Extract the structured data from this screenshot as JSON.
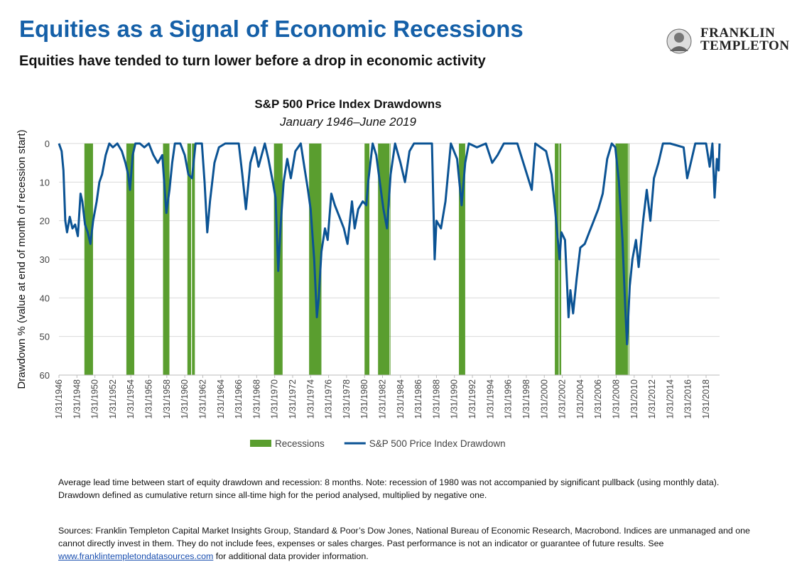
{
  "header": {
    "title": "Equities as a Signal of Economic Recessions",
    "subtitle": "Equities have tended to turn lower before a drop in economic activity"
  },
  "logo": {
    "line1": "FRANKLIN",
    "line2": "TEMPLETON"
  },
  "chart_data": {
    "type": "line",
    "title": "S&P 500 Price Index Drawdowns",
    "subtitle": "January 1946–June 2019",
    "y_label": "Drawdown % (value at end of month of recession start)",
    "ylim": [
      0,
      60
    ],
    "yticks": [
      0,
      10,
      20,
      30,
      40,
      50,
      60
    ],
    "y_inverted": true,
    "grid": true,
    "xlim": [
      1946,
      2019.5
    ],
    "xticks": [
      {
        "value": 1946,
        "label": "1/31/1946"
      },
      {
        "value": 1948,
        "label": "1/31/1948"
      },
      {
        "value": 1950,
        "label": "1/31/1950"
      },
      {
        "value": 1952,
        "label": "1/31/1952"
      },
      {
        "value": 1954,
        "label": "1/31/1954"
      },
      {
        "value": 1956,
        "label": "1/31/1956"
      },
      {
        "value": 1958,
        "label": "1/31/1958"
      },
      {
        "value": 1960,
        "label": "1/31/1960"
      },
      {
        "value": 1962,
        "label": "1/31/1962"
      },
      {
        "value": 1964,
        "label": "1/31/1964"
      },
      {
        "value": 1966,
        "label": "1/31/1966"
      },
      {
        "value": 1968,
        "label": "1/31/1968"
      },
      {
        "value": 1970,
        "label": "1/31/1970"
      },
      {
        "value": 1972,
        "label": "1/31/1972"
      },
      {
        "value": 1974,
        "label": "1/31/1974"
      },
      {
        "value": 1976,
        "label": "1/31/1976"
      },
      {
        "value": 1978,
        "label": "1/31/1978"
      },
      {
        "value": 1980,
        "label": "1/31/1980"
      },
      {
        "value": 1982,
        "label": "1/31/1982"
      },
      {
        "value": 1984,
        "label": "1/31/1984"
      },
      {
        "value": 1986,
        "label": "1/31/1986"
      },
      {
        "value": 1988,
        "label": "1/31/1988"
      },
      {
        "value": 1990,
        "label": "1/31/1990"
      },
      {
        "value": 1992,
        "label": "1/31/1992"
      },
      {
        "value": 1994,
        "label": "1/31/1994"
      },
      {
        "value": 1996,
        "label": "1/31/1996"
      },
      {
        "value": 1998,
        "label": "1/31/1998"
      },
      {
        "value": 2000,
        "label": "1/31/2000"
      },
      {
        "value": 2002,
        "label": "1/31/2002"
      },
      {
        "value": 2004,
        "label": "1/31/2004"
      },
      {
        "value": 2006,
        "label": "1/31/2006"
      },
      {
        "value": 2008,
        "label": "1/31/2008"
      },
      {
        "value": 2010,
        "label": "1/31/2010"
      },
      {
        "value": 2012,
        "label": "1/31/2012"
      },
      {
        "value": 2014,
        "label": "1/31/2014"
      },
      {
        "value": 2016,
        "label": "1/31/2016"
      },
      {
        "value": 2018,
        "label": "1/31/2018"
      }
    ],
    "series": [
      {
        "name": "Recessions",
        "type": "bar",
        "color": "#5a9e2f",
        "spans": [
          [
            1948.83,
            1949.79
          ],
          [
            1953.5,
            1954.38
          ],
          [
            1957.58,
            1958.29
          ],
          [
            1960.29,
            1960.7
          ],
          [
            1960.8,
            1961.12
          ],
          [
            1969.92,
            1970.88
          ],
          [
            1973.83,
            1975.2
          ],
          [
            1980.0,
            1980.54
          ],
          [
            1981.5,
            1982.75
          ],
          [
            1982.8,
            1982.88
          ],
          [
            1990.5,
            1991.2
          ],
          [
            2001.17,
            2001.6
          ],
          [
            2001.68,
            2001.88
          ],
          [
            2007.92,
            2009.3
          ],
          [
            2009.37,
            2009.46
          ]
        ],
        "values": [
          60,
          60,
          60,
          60,
          60,
          60,
          60,
          60,
          60,
          60,
          60,
          60,
          60,
          60,
          60
        ]
      },
      {
        "name": "S&P 500 Price Index Drawdown",
        "type": "line",
        "color": "#0b5394",
        "x": [
          1946.0,
          1946.3,
          1946.5,
          1946.7,
          1946.9,
          1947.2,
          1947.5,
          1947.8,
          1948.1,
          1948.4,
          1948.6,
          1948.9,
          1949.2,
          1949.5,
          1949.8,
          1950.2,
          1950.5,
          1950.8,
          1951.2,
          1951.6,
          1952.0,
          1952.5,
          1953.0,
          1953.4,
          1953.7,
          1953.9,
          1954.2,
          1954.5,
          1955.0,
          1955.5,
          1956.0,
          1956.5,
          1957.0,
          1957.5,
          1957.8,
          1957.95,
          1958.3,
          1958.6,
          1958.9,
          1959.5,
          1960.0,
          1960.4,
          1960.8,
          1961.2,
          1961.9,
          1962.2,
          1962.5,
          1962.8,
          1963.3,
          1963.8,
          1964.5,
          1965.5,
          1966.0,
          1966.4,
          1966.8,
          1967.3,
          1967.8,
          1968.2,
          1968.9,
          1969.3,
          1969.8,
          1970.1,
          1970.4,
          1970.7,
          1971.0,
          1971.4,
          1971.8,
          1972.3,
          1972.9,
          1973.3,
          1973.7,
          1974.0,
          1974.4,
          1974.7,
          1974.9,
          1975.2,
          1975.6,
          1975.9,
          1976.3,
          1976.7,
          1977.2,
          1977.7,
          1978.1,
          1978.6,
          1978.9,
          1979.3,
          1979.8,
          1980.2,
          1980.4,
          1980.9,
          1981.3,
          1981.7,
          1982.1,
          1982.5,
          1982.9,
          1983.4,
          1984.0,
          1984.5,
          1985.0,
          1985.5,
          1986.0,
          1987.5,
          1987.8,
          1988.0,
          1988.5,
          1989.0,
          1989.6,
          1990.3,
          1990.8,
          1991.2,
          1991.6,
          1992.5,
          1993.5,
          1994.2,
          1994.8,
          1995.5,
          1997.0,
          1998.6,
          1999.0,
          2000.2,
          2000.8,
          2001.2,
          2001.7,
          2001.9,
          2002.3,
          2002.7,
          2002.9,
          2003.2,
          2003.6,
          2004.0,
          2004.5,
          2005.0,
          2005.5,
          2006.0,
          2006.5,
          2007.0,
          2007.5,
          2007.9,
          2008.3,
          2008.7,
          2009.0,
          2009.2,
          2009.5,
          2009.8,
          2010.2,
          2010.5,
          2011.0,
          2011.4,
          2011.8,
          2012.2,
          2012.7,
          2013.2,
          2014.0,
          2015.5,
          2015.9,
          2016.3,
          2016.8,
          2017.5,
          2018.0,
          2018.4,
          2018.7,
          2018.95,
          2019.2,
          2019.4,
          2019.5
        ],
        "values": [
          0,
          2,
          7,
          20,
          23,
          19,
          22,
          21,
          24,
          13,
          15,
          21,
          23,
          26,
          20,
          15,
          10,
          8,
          3,
          0,
          1,
          0,
          2,
          5,
          8,
          12,
          3,
          0,
          0,
          1,
          0,
          3,
          5,
          3,
          13,
          18,
          12,
          5,
          0,
          0,
          3,
          8,
          9,
          0,
          0,
          10,
          23,
          15,
          5,
          1,
          0,
          0,
          0,
          8,
          17,
          5,
          1,
          6,
          0,
          4,
          10,
          14,
          33,
          20,
          10,
          4,
          9,
          2,
          0,
          6,
          12,
          17,
          30,
          45,
          40,
          28,
          22,
          25,
          13,
          16,
          19,
          22,
          26,
          15,
          22,
          17,
          15,
          16,
          10,
          0,
          3,
          10,
          17,
          22,
          8,
          0,
          5,
          10,
          2,
          0,
          0,
          0,
          30,
          20,
          22,
          15,
          0,
          4,
          16,
          5,
          0,
          1,
          0,
          5,
          3,
          0,
          0,
          12,
          0,
          2,
          8,
          17,
          30,
          23,
          25,
          45,
          38,
          44,
          35,
          27,
          26,
          23,
          20,
          17,
          13,
          4,
          0,
          1,
          10,
          25,
          42,
          52,
          37,
          30,
          25,
          32,
          20,
          12,
          20,
          9,
          5,
          0,
          0,
          1,
          9,
          5,
          0,
          0,
          0,
          6,
          0,
          14,
          4,
          7,
          0
        ]
      }
    ]
  },
  "notes": [
    "Average lead time between start of equity drawdown and recession: 8 months. Note: recession of 1980 was not accompanied by significant pullback (using monthly data). Drawdown defined as cumulative return since all-time high for the period analysed, multiplied by negative one."
  ],
  "sources": {
    "text": "Sources: Franklin Templeton Capital Market Insights Group, Standard & Poor’s Dow Jones, National Bureau of Economic Research, Macrobond. Indices are unmanaged and one cannot directly invest in them. They do not include fees, expenses or sales charges. Past performance is not an indicator or guarantee of future results. See",
    "link": "www.franklintempletondatasources.com",
    "suffix": "for additional data provider information."
  }
}
